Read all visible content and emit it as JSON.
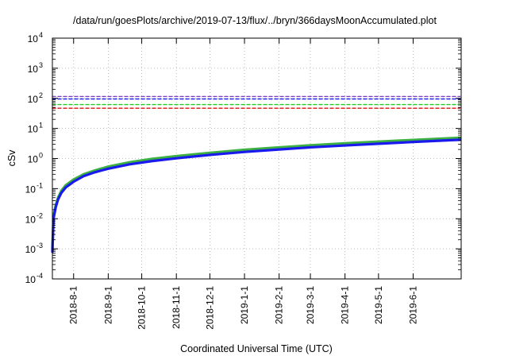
{
  "chart_data": {
    "type": "line",
    "title": "/data/run/goesPlots/archive/2019-07-13/flux/../bryn/366daysMoonAccumulated.plot",
    "xlabel": "Coordinated Universal Time (UTC)",
    "ylabel": "cSv",
    "y_scale": "log",
    "ylim": [
      0.0001,
      10000
    ],
    "xlim": [
      "2018-07-13",
      "2019-07-14"
    ],
    "y_ticks": [
      {
        "value": 0.0001,
        "base": "10",
        "exp": "-4"
      },
      {
        "value": 0.001,
        "base": "10",
        "exp": "-3"
      },
      {
        "value": 0.01,
        "base": "10",
        "exp": "-2"
      },
      {
        "value": 0.1,
        "base": "10",
        "exp": "-1"
      },
      {
        "value": 1,
        "base": "10",
        "exp": "0"
      },
      {
        "value": 10,
        "base": "10",
        "exp": "1"
      },
      {
        "value": 100,
        "base": "10",
        "exp": "2"
      },
      {
        "value": 1000,
        "base": "10",
        "exp": "3"
      },
      {
        "value": 10000,
        "base": "10",
        "exp": "4"
      }
    ],
    "x_ticks": [
      {
        "date": "2018-08-01",
        "label": "2018-8-1"
      },
      {
        "date": "2018-09-01",
        "label": "2018-9-1"
      },
      {
        "date": "2018-10-01",
        "label": "2018-10-1"
      },
      {
        "date": "2018-11-01",
        "label": "2018-11-1"
      },
      {
        "date": "2018-12-01",
        "label": "2018-12-1"
      },
      {
        "date": "2019-01-01",
        "label": "2019-1-1"
      },
      {
        "date": "2019-02-01",
        "label": "2019-2-1"
      },
      {
        "date": "2019-03-01",
        "label": "2019-3-1"
      },
      {
        "date": "2019-04-01",
        "label": "2019-4-1"
      },
      {
        "date": "2019-05-01",
        "label": "2019-5-1"
      },
      {
        "date": "2019-06-01",
        "label": "2019-6-1"
      }
    ],
    "grid": true,
    "legend": "none",
    "series": [
      {
        "color": "#3cb043",
        "style": "solid",
        "x": [
          "2018-07-13",
          "2018-07-14",
          "2018-07-16",
          "2018-07-18",
          "2018-07-21",
          "2018-07-25",
          "2018-08-01",
          "2018-08-10",
          "2018-08-20",
          "2018-09-01",
          "2018-09-20",
          "2018-10-10",
          "2018-11-01",
          "2018-12-01",
          "2019-01-01",
          "2019-02-01",
          "2019-03-01",
          "2019-04-01",
          "2019-05-01",
          "2019-06-01",
          "2019-07-13"
        ],
        "y": [
          0.001,
          0.012,
          0.028,
          0.05,
          0.085,
          0.13,
          0.2,
          0.3,
          0.4,
          0.54,
          0.75,
          0.97,
          1.2,
          1.55,
          1.95,
          2.35,
          2.75,
          3.2,
          3.65,
          4.15,
          4.9
        ]
      },
      {
        "color": "#1a1aee",
        "style": "solid",
        "x": [
          "2018-07-13",
          "2018-07-14",
          "2018-07-16",
          "2018-07-18",
          "2018-07-21",
          "2018-07-25",
          "2018-08-01",
          "2018-08-10",
          "2018-08-20",
          "2018-09-01",
          "2018-09-20",
          "2018-10-10",
          "2018-11-01",
          "2018-12-01",
          "2019-01-01",
          "2019-02-01",
          "2019-03-01",
          "2019-04-01",
          "2019-05-01",
          "2019-06-01",
          "2019-07-13"
        ],
        "y": [
          0.0008,
          0.01,
          0.024,
          0.043,
          0.072,
          0.11,
          0.17,
          0.26,
          0.35,
          0.46,
          0.64,
          0.82,
          1.02,
          1.32,
          1.66,
          2.0,
          2.35,
          2.72,
          3.1,
          3.55,
          4.2
        ]
      },
      {
        "color": "#7e3fbf",
        "style": "dashed",
        "x": [
          "2018-07-13",
          "2019-07-13"
        ],
        "y": [
          115,
          115
        ]
      },
      {
        "color": "#1a1aee",
        "style": "dashed",
        "x": [
          "2018-07-13",
          "2019-07-13"
        ],
        "y": [
          95,
          95
        ]
      },
      {
        "color": "#22cc22",
        "style": "dashed",
        "x": [
          "2018-07-13",
          "2019-07-13"
        ],
        "y": [
          62,
          62
        ]
      },
      {
        "color": "#dd1111",
        "style": "dashed",
        "x": [
          "2018-07-13",
          "2019-07-13"
        ],
        "y": [
          47,
          47
        ]
      }
    ]
  }
}
